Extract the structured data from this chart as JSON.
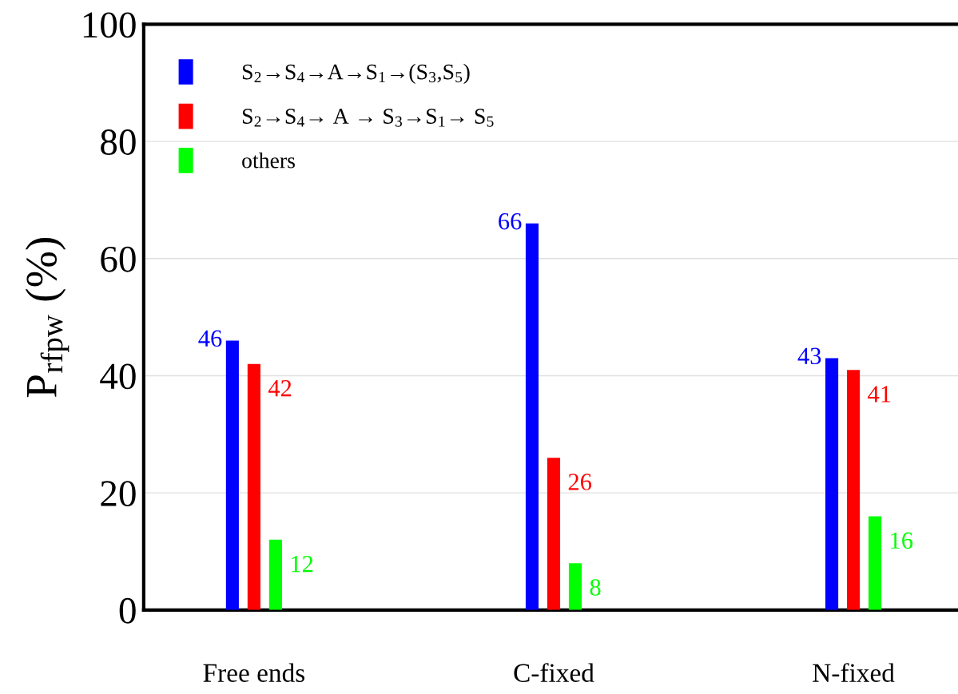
{
  "chart_data": {
    "type": "bar",
    "categories": [
      "Free ends",
      "C-fixed",
      "N-fixed"
    ],
    "series": [
      {
        "name": "S$_{2}$→S$_{4}$→A→S$_{1}$→(S$_{3}$,S$_{5}$)",
        "color": "#0000ff",
        "values": [
          46,
          66,
          43
        ]
      },
      {
        "name": "S$_{2}$→S$_{4}$→ A → S$_{3}$→S$_{1}$→ S$_{5}$",
        "color": "#ff0000",
        "values": [
          42,
          26,
          41
        ]
      },
      {
        "name": "others",
        "color": "#00ff00",
        "values": [
          12,
          8,
          16
        ]
      }
    ],
    "ylabel": "P$_{rfpw}$ (%)",
    "ylim": [
      0,
      100
    ],
    "yticks": [
      0,
      20,
      40,
      60,
      80,
      100
    ],
    "grid": "y",
    "legend": "top left",
    "data_labels": true
  }
}
